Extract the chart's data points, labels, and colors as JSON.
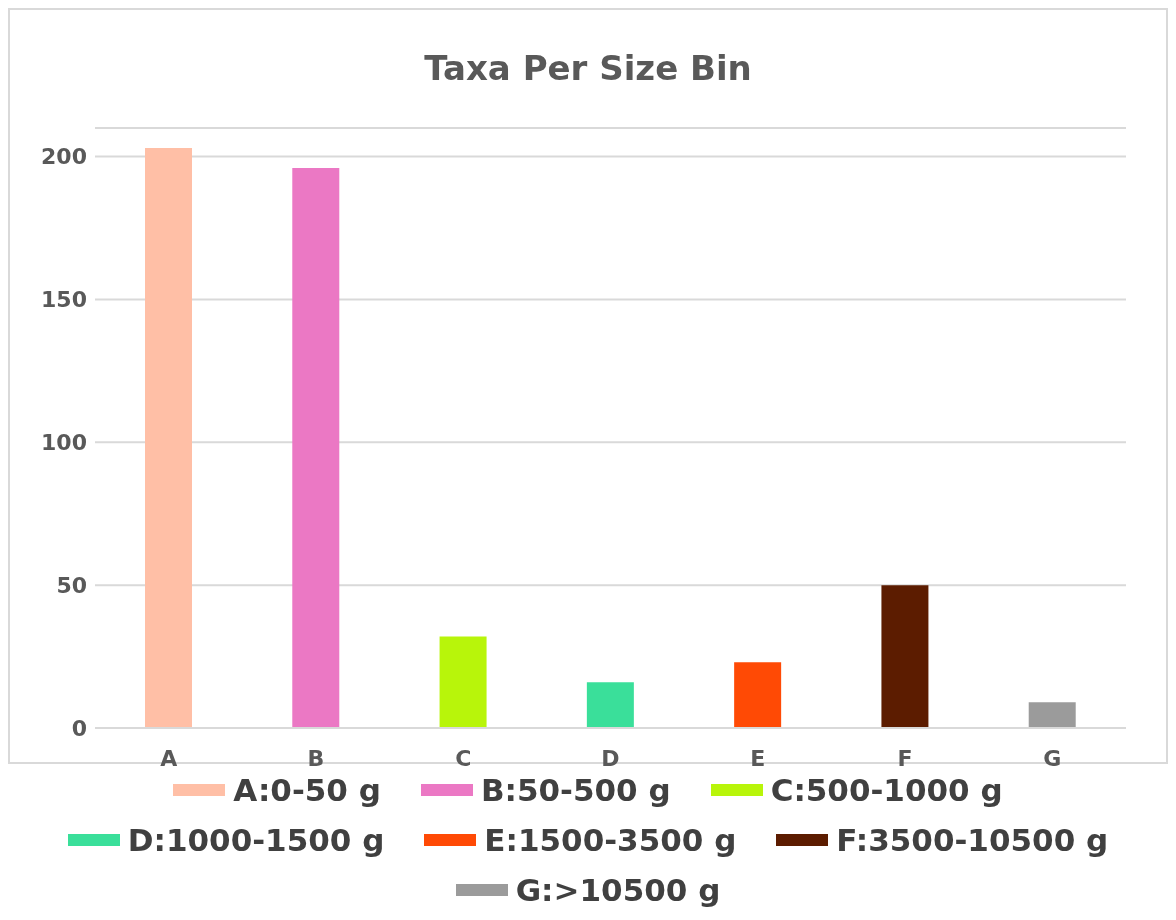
{
  "chart_data": {
    "type": "bar",
    "title": "Taxa Per Size Bin",
    "categories": [
      "A",
      "B",
      "C",
      "D",
      "E",
      "F",
      "G"
    ],
    "stacked": true,
    "series": [
      {
        "name": "A:0-50 g",
        "color": "#ffbfa6",
        "values": [
          203,
          null,
          null,
          null,
          null,
          null,
          null
        ]
      },
      {
        "name": "B:50-500 g",
        "color": "#eb78c4",
        "values": [
          null,
          196,
          null,
          null,
          null,
          null,
          null
        ]
      },
      {
        "name": "C:500-1000 g",
        "color": "#b8f50a",
        "values": [
          null,
          null,
          32,
          null,
          null,
          null,
          null
        ]
      },
      {
        "name": "D:1000-1500 g",
        "color": "#3adf9a",
        "values": [
          null,
          null,
          null,
          16,
          null,
          null,
          null
        ]
      },
      {
        "name": "E:1500-3500 g",
        "color": "#ff4a05",
        "values": [
          null,
          null,
          null,
          null,
          23,
          null,
          null
        ]
      },
      {
        "name": "F:3500-10500 g",
        "color": "#5c1c00",
        "values": [
          null,
          null,
          null,
          null,
          null,
          50,
          null
        ]
      },
      {
        "name": "G:>10500 g",
        "color": "#9b9b9b",
        "values": [
          null,
          null,
          null,
          null,
          null,
          null,
          9
        ]
      }
    ],
    "ylim": [
      0,
      210
    ],
    "yticks": [
      0,
      50,
      100,
      150,
      200
    ],
    "grid": "y",
    "legend": "bottom"
  }
}
